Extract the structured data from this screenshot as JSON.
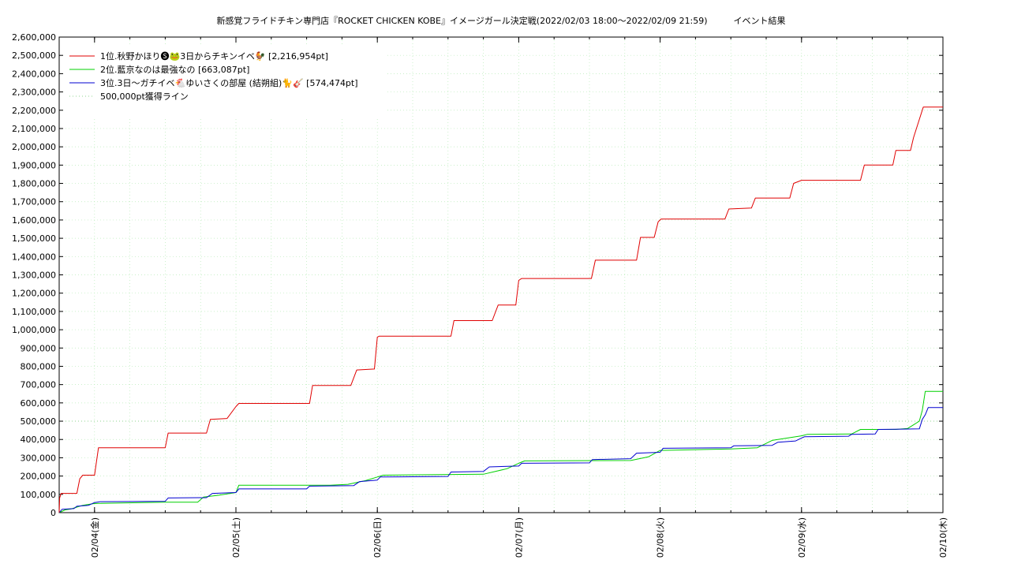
{
  "chart_data": {
    "type": "line",
    "title": "新感覚フライドチキン専門店『ROCKET CHICKEN KOBE』イメージガール決定戦(2022/02/03 18:00～2022/02/09 21:59)　　　イベント結果",
    "xlabel": "",
    "ylabel": "",
    "xlim": [
      "2022-02-03 18:00",
      "2022-02-10 00:00"
    ],
    "ylim": [
      0,
      2600000
    ],
    "yticks": [
      0,
      100000,
      200000,
      300000,
      400000,
      500000,
      600000,
      700000,
      800000,
      900000,
      1000000,
      1100000,
      1200000,
      1300000,
      1400000,
      1500000,
      1600000,
      1700000,
      1800000,
      1900000,
      2000000,
      2100000,
      2200000,
      2300000,
      2400000,
      2500000,
      2600000
    ],
    "ytick_labels": [
      "0",
      "100,000",
      "200,000",
      "300,000",
      "400,000",
      "500,000",
      "600,000",
      "700,000",
      "800,000",
      "900,000",
      "1,000,000",
      "1,100,000",
      "1,200,000",
      "1,300,000",
      "1,400,000",
      "1,500,000",
      "1,600,000",
      "1,700,000",
      "1,800,000",
      "1,900,000",
      "2,000,000",
      "2,100,000",
      "2,200,000",
      "2,300,000",
      "2,400,000",
      "2,500,000",
      "2,600,000"
    ],
    "xticks": [
      "2022-02-04 00:00",
      "2022-02-05 00:00",
      "2022-02-06 00:00",
      "2022-02-07 00:00",
      "2022-02-08 00:00",
      "2022-02-09 00:00",
      "2022-02-10 00:00"
    ],
    "xtick_labels": [
      "02/04(金)",
      "02/05(土)",
      "02/06(日)",
      "02/07(月)",
      "02/08(火)",
      "02/09(水)",
      "02/10(木)"
    ],
    "grid": true,
    "legend_position": "top-left",
    "threshold": {
      "value": 500000,
      "label": "500,000pt獲得ライン",
      "color": "#8fd68f",
      "style": "dotted"
    },
    "series": [
      {
        "name": "1位.秋野かほり🅢🐸3日からチキンイベ🐓 [2,216,954pt]",
        "color": "#e00000",
        "points": [
          [
            "2022-02-03 18:00",
            0
          ],
          [
            "2022-02-03 18:05",
            80000
          ],
          [
            "2022-02-03 18:20",
            105000
          ],
          [
            "2022-02-03 21:00",
            105000
          ],
          [
            "2022-02-03 21:30",
            185000
          ],
          [
            "2022-02-03 22:00",
            205000
          ],
          [
            "2022-02-04 00:00",
            205000
          ],
          [
            "2022-02-04 00:20",
            280000
          ],
          [
            "2022-02-04 00:40",
            355000
          ],
          [
            "2022-02-04 12:00",
            355000
          ],
          [
            "2022-02-04 12:30",
            435000
          ],
          [
            "2022-02-04 19:00",
            435000
          ],
          [
            "2022-02-04 19:40",
            510000
          ],
          [
            "2022-02-04 22:30",
            515000
          ],
          [
            "2022-02-05 00:00",
            580000
          ],
          [
            "2022-02-05 00:30",
            597000
          ],
          [
            "2022-02-05 12:30",
            597000
          ],
          [
            "2022-02-05 13:00",
            695000
          ],
          [
            "2022-02-05 19:30",
            695000
          ],
          [
            "2022-02-05 20:30",
            780000
          ],
          [
            "2022-02-05 23:30",
            785000
          ],
          [
            "2022-02-06 00:00",
            960000
          ],
          [
            "2022-02-06 00:20",
            965000
          ],
          [
            "2022-02-06 12:30",
            965000
          ],
          [
            "2022-02-06 13:00",
            1050000
          ],
          [
            "2022-02-06 19:30",
            1050000
          ],
          [
            "2022-02-06 20:30",
            1135000
          ],
          [
            "2022-02-06 23:30",
            1135000
          ],
          [
            "2022-02-07 00:00",
            1270000
          ],
          [
            "2022-02-07 00:30",
            1280000
          ],
          [
            "2022-02-07 12:20",
            1280000
          ],
          [
            "2022-02-07 13:00",
            1380000
          ],
          [
            "2022-02-07 20:00",
            1380000
          ],
          [
            "2022-02-07 20:40",
            1505000
          ],
          [
            "2022-02-07 23:00",
            1505000
          ],
          [
            "2022-02-07 23:40",
            1590000
          ],
          [
            "2022-02-08 00:10",
            1605000
          ],
          [
            "2022-02-08 11:00",
            1605000
          ],
          [
            "2022-02-08 11:40",
            1660000
          ],
          [
            "2022-02-08 15:30",
            1665000
          ],
          [
            "2022-02-08 16:10",
            1720000
          ],
          [
            "2022-02-08 22:00",
            1720000
          ],
          [
            "2022-02-08 22:40",
            1800000
          ],
          [
            "2022-02-09 00:00",
            1817000
          ],
          [
            "2022-02-09 10:00",
            1817000
          ],
          [
            "2022-02-09 10:40",
            1900000
          ],
          [
            "2022-02-09 15:30",
            1900000
          ],
          [
            "2022-02-09 16:00",
            1980000
          ],
          [
            "2022-02-09 18:30",
            1980000
          ],
          [
            "2022-02-09 19:00",
            2050000
          ],
          [
            "2022-02-09 20:00",
            2150000
          ],
          [
            "2022-02-09 20:40",
            2216954
          ],
          [
            "2022-02-10 00:00",
            2216954
          ]
        ]
      },
      {
        "name": "2位.藍京なのは最強なの [663,087pt]",
        "color": "#00d000",
        "points": [
          [
            "2022-02-03 18:00",
            0
          ],
          [
            "2022-02-03 19:00",
            15000
          ],
          [
            "2022-02-03 20:00",
            20000
          ],
          [
            "2022-02-03 21:00",
            30000
          ],
          [
            "2022-02-03 22:00",
            40000
          ],
          [
            "2022-02-04 00:00",
            50000
          ],
          [
            "2022-02-04 12:00",
            57000
          ],
          [
            "2022-02-04 17:30",
            57000
          ],
          [
            "2022-02-04 18:30",
            85000
          ],
          [
            "2022-02-04 21:00",
            95000
          ],
          [
            "2022-02-05 00:00",
            110000
          ],
          [
            "2022-02-05 00:30",
            150000
          ],
          [
            "2022-02-05 16:00",
            150000
          ],
          [
            "2022-02-05 19:00",
            155000
          ],
          [
            "2022-02-05 22:00",
            175000
          ],
          [
            "2022-02-06 00:00",
            195000
          ],
          [
            "2022-02-06 01:00",
            205000
          ],
          [
            "2022-02-06 18:00",
            210000
          ],
          [
            "2022-02-06 22:00",
            240000
          ],
          [
            "2022-02-07 00:00",
            270000
          ],
          [
            "2022-02-07 01:00",
            283000
          ],
          [
            "2022-02-07 19:00",
            285000
          ],
          [
            "2022-02-07 22:00",
            305000
          ],
          [
            "2022-02-08 00:00",
            340000
          ],
          [
            "2022-02-08 12:00",
            348000
          ],
          [
            "2022-02-08 16:30",
            355000
          ],
          [
            "2022-02-08 19:00",
            395000
          ],
          [
            "2022-02-09 00:00",
            420000
          ],
          [
            "2022-02-09 01:00",
            428000
          ],
          [
            "2022-02-09 08:30",
            430000
          ],
          [
            "2022-02-09 10:00",
            455000
          ],
          [
            "2022-02-09 16:00",
            455000
          ],
          [
            "2022-02-09 18:00",
            460000
          ],
          [
            "2022-02-09 19:00",
            480000
          ],
          [
            "2022-02-09 20:00",
            500000
          ],
          [
            "2022-02-09 20:30",
            560000
          ],
          [
            "2022-02-09 21:00",
            663087
          ],
          [
            "2022-02-10 00:00",
            663087
          ]
        ]
      },
      {
        "name": "3位.3日〜ガチイベ🐔ゆいさくの部屋 (結朔組)🐈🎸 [574,474pt]",
        "color": "#0000d0",
        "points": [
          [
            "2022-02-03 18:00",
            0
          ],
          [
            "2022-02-03 18:30",
            18000
          ],
          [
            "2022-02-03 20:30",
            22000
          ],
          [
            "2022-02-03 21:00",
            35000
          ],
          [
            "2022-02-03 23:00",
            40000
          ],
          [
            "2022-02-04 00:00",
            55000
          ],
          [
            "2022-02-04 01:00",
            60000
          ],
          [
            "2022-02-04 12:00",
            62000
          ],
          [
            "2022-02-04 12:30",
            80000
          ],
          [
            "2022-02-04 19:00",
            82000
          ],
          [
            "2022-02-04 20:00",
            105000
          ],
          [
            "2022-02-05 00:00",
            110000
          ],
          [
            "2022-02-05 00:30",
            130000
          ],
          [
            "2022-02-05 12:00",
            130000
          ],
          [
            "2022-02-05 12:30",
            145000
          ],
          [
            "2022-02-05 20:00",
            148000
          ],
          [
            "2022-02-05 21:00",
            170000
          ],
          [
            "2022-02-06 00:00",
            178000
          ],
          [
            "2022-02-06 00:30",
            195000
          ],
          [
            "2022-02-06 12:00",
            198000
          ],
          [
            "2022-02-06 12:30",
            222000
          ],
          [
            "2022-02-06 18:00",
            225000
          ],
          [
            "2022-02-06 19:00",
            250000
          ],
          [
            "2022-02-07 00:00",
            255000
          ],
          [
            "2022-02-07 00:30",
            270000
          ],
          [
            "2022-02-07 12:00",
            272000
          ],
          [
            "2022-02-07 12:30",
            290000
          ],
          [
            "2022-02-07 19:00",
            295000
          ],
          [
            "2022-02-07 20:00",
            325000
          ],
          [
            "2022-02-08 00:00",
            330000
          ],
          [
            "2022-02-08 00:30",
            352000
          ],
          [
            "2022-02-08 12:00",
            355000
          ],
          [
            "2022-02-08 12:30",
            365000
          ],
          [
            "2022-02-08 19:00",
            368000
          ],
          [
            "2022-02-08 20:00",
            385000
          ],
          [
            "2022-02-08 23:00",
            392000
          ],
          [
            "2022-02-09 00:00",
            408000
          ],
          [
            "2022-02-09 00:30",
            415000
          ],
          [
            "2022-02-09 08:00",
            418000
          ],
          [
            "2022-02-09 08:30",
            428000
          ],
          [
            "2022-02-09 12:30",
            430000
          ],
          [
            "2022-02-09 13:00",
            455000
          ],
          [
            "2022-02-09 20:00",
            458000
          ],
          [
            "2022-02-09 20:30",
            510000
          ],
          [
            "2022-02-09 21:00",
            535000
          ],
          [
            "2022-02-09 21:30",
            574474
          ],
          [
            "2022-02-10 00:00",
            574474
          ]
        ]
      }
    ]
  }
}
